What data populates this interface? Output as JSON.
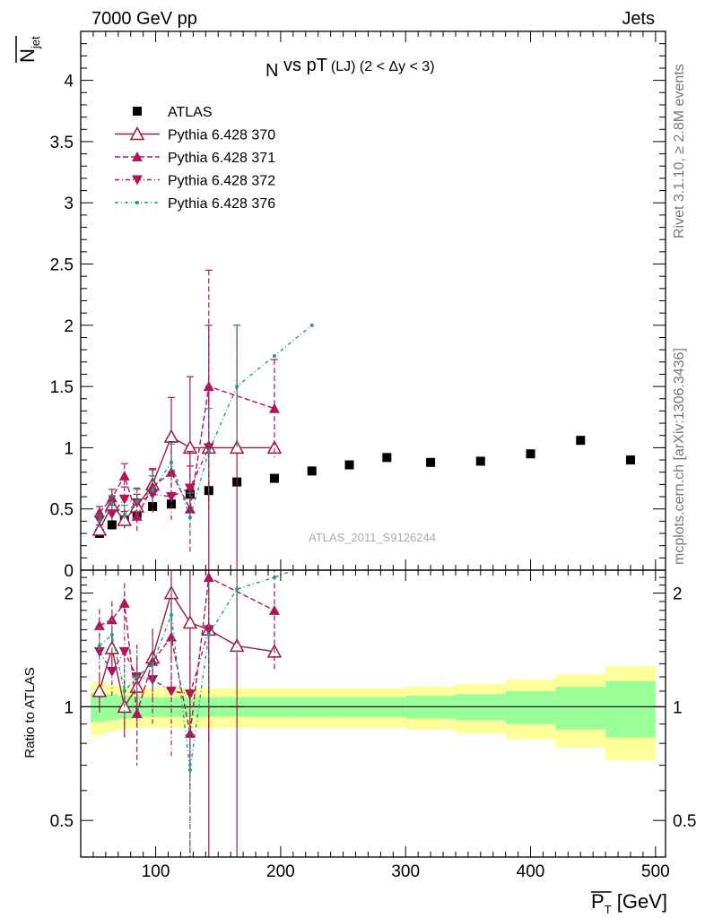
{
  "header": {
    "left": "7000 GeV pp",
    "right": "Jets"
  },
  "side_labels": {
    "rivet": "Rivet 3.1.10, ≥ 2.8M events",
    "mcplots": "mcplots.cern.ch [arXiv:1306.3436]"
  },
  "watermark": "ATLAS_2011_S9126244",
  "chart_data": {
    "type": "scatter",
    "title": {
      "main": "N",
      "main_sub": "jet",
      "rest": " vs pT",
      "suffix": "(LJ) (2 < Δy < 3)"
    },
    "ylabel": {
      "main": "N",
      "sub": "jet"
    },
    "xlabel": {
      "main": "P",
      "sub": "T",
      "unit": " [GeV]"
    },
    "ratio_ylabel": "Ratio to ATLAS",
    "xlim": [
      40,
      508
    ],
    "ylim": [
      0,
      4.4
    ],
    "ratio_ylim": [
      0.4,
      2.3
    ],
    "x_ticks": [
      100,
      200,
      300,
      400,
      500
    ],
    "y_ticks": [
      0,
      0.5,
      1,
      1.5,
      2,
      2.5,
      3,
      3.5,
      4
    ],
    "ratio_ticks": [
      0.5,
      1,
      2
    ],
    "grid": false,
    "legend_position": "top-left",
    "band_edges": [
      48,
      60,
      70,
      80,
      90,
      105,
      120,
      135,
      150,
      180,
      210,
      240,
      270,
      300,
      340,
      380,
      420,
      460,
      500
    ],
    "band_inner": [
      0.09,
      0.08,
      0.07,
      0.07,
      0.06,
      0.06,
      0.06,
      0.06,
      0.06,
      0.06,
      0.06,
      0.06,
      0.06,
      0.07,
      0.08,
      0.1,
      0.13,
      0.17,
      0.2
    ],
    "band_outer": [
      0.16,
      0.14,
      0.13,
      0.12,
      0.12,
      0.12,
      0.12,
      0.12,
      0.12,
      0.12,
      0.12,
      0.12,
      0.12,
      0.13,
      0.15,
      0.18,
      0.22,
      0.28,
      0.35
    ],
    "series": [
      {
        "name": "ATLAS",
        "color": "#000000",
        "marker": "square",
        "dash": "none",
        "x": [
          55,
          65,
          75,
          85,
          97.5,
          112.5,
          127.5,
          142.5,
          165,
          195,
          225,
          255,
          285,
          320,
          360,
          400,
          440,
          480
        ],
        "y": [
          0.3,
          0.37,
          0.41,
          0.46,
          0.52,
          0.54,
          0.62,
          0.65,
          0.72,
          0.75,
          0.81,
          0.86,
          0.92,
          0.88,
          0.89,
          0.95,
          1.06,
          0.9
        ],
        "ratio": [],
        "err": []
      },
      {
        "name": "Pythia 6.428 370",
        "color": "#9b1b3b",
        "marker": "triangle-open",
        "dash": "none",
        "x": [
          55,
          65,
          75,
          85,
          97.5,
          112.5,
          127.5,
          142.5,
          165,
          195
        ],
        "y": [
          0.33,
          0.53,
          0.41,
          0.52,
          0.7,
          1.09,
          1.0,
          1.0,
          1.0,
          1.0
        ],
        "ratio": [
          1.1,
          1.43,
          1.0,
          1.13,
          1.35,
          2.0,
          1.67,
          1.6,
          1.45,
          1.4
        ],
        "err": [
          0.04,
          0.07,
          0.07,
          0.1,
          0.12,
          0.32,
          0.58,
          1.0,
          1.0,
          0.0
        ]
      },
      {
        "name": "Pythia 6.428 371",
        "color": "#b0155a",
        "marker": "triangle-up",
        "dash": "6,3",
        "x": [
          55,
          65,
          75,
          85,
          97.5,
          112.5,
          127.5,
          142.5,
          195
        ],
        "y": [
          0.47,
          0.59,
          0.77,
          0.44,
          0.68,
          0.8,
          0.5,
          1.5,
          1.32
        ],
        "ratio": [
          1.64,
          1.7,
          1.88,
          0.96,
          1.32,
          1.53,
          0.85,
          2.2,
          1.8
        ],
        "err": [
          0.05,
          0.07,
          0.1,
          0.12,
          0.15,
          0.25,
          0.35,
          0.95,
          0.4
        ]
      },
      {
        "name": "Pythia 6.428 372",
        "color": "#b0155a",
        "marker": "triangle-down",
        "dash": "5,3,1,3",
        "x": [
          55,
          65,
          75,
          85,
          97.5,
          112.5,
          127.5,
          142.5
        ],
        "y": [
          0.41,
          0.46,
          0.58,
          0.55,
          0.62,
          0.6,
          0.67,
          1.0
        ],
        "ratio": [
          1.4,
          1.24,
          1.4,
          1.2,
          1.18,
          1.1,
          1.08,
          1.6
        ],
        "err": [
          0.05,
          0.07,
          0.1,
          0.12,
          0.15,
          0.2,
          0.3,
          0.5
        ]
      },
      {
        "name": "Pythia 6.428 376",
        "color": "#1f9a8a",
        "marker": "dot",
        "dash": "4,3,1,3",
        "x": [
          55,
          65,
          75,
          85,
          97.5,
          112.5,
          127.5,
          142.5,
          165,
          195,
          225
        ],
        "y": [
          0.4,
          0.55,
          0.45,
          0.56,
          0.65,
          0.88,
          0.43,
          0.97,
          1.5,
          1.75,
          2.0
        ],
        "ratio": [
          1.45,
          1.55,
          1.1,
          1.2,
          1.3,
          1.75,
          0.68,
          1.55,
          2.05,
          2.2,
          2.4
        ],
        "err": [
          0.05,
          0.06,
          0.08,
          0.1,
          0.12,
          0.15,
          0.2,
          0.35,
          0.5,
          0.0,
          0.0
        ]
      }
    ]
  }
}
